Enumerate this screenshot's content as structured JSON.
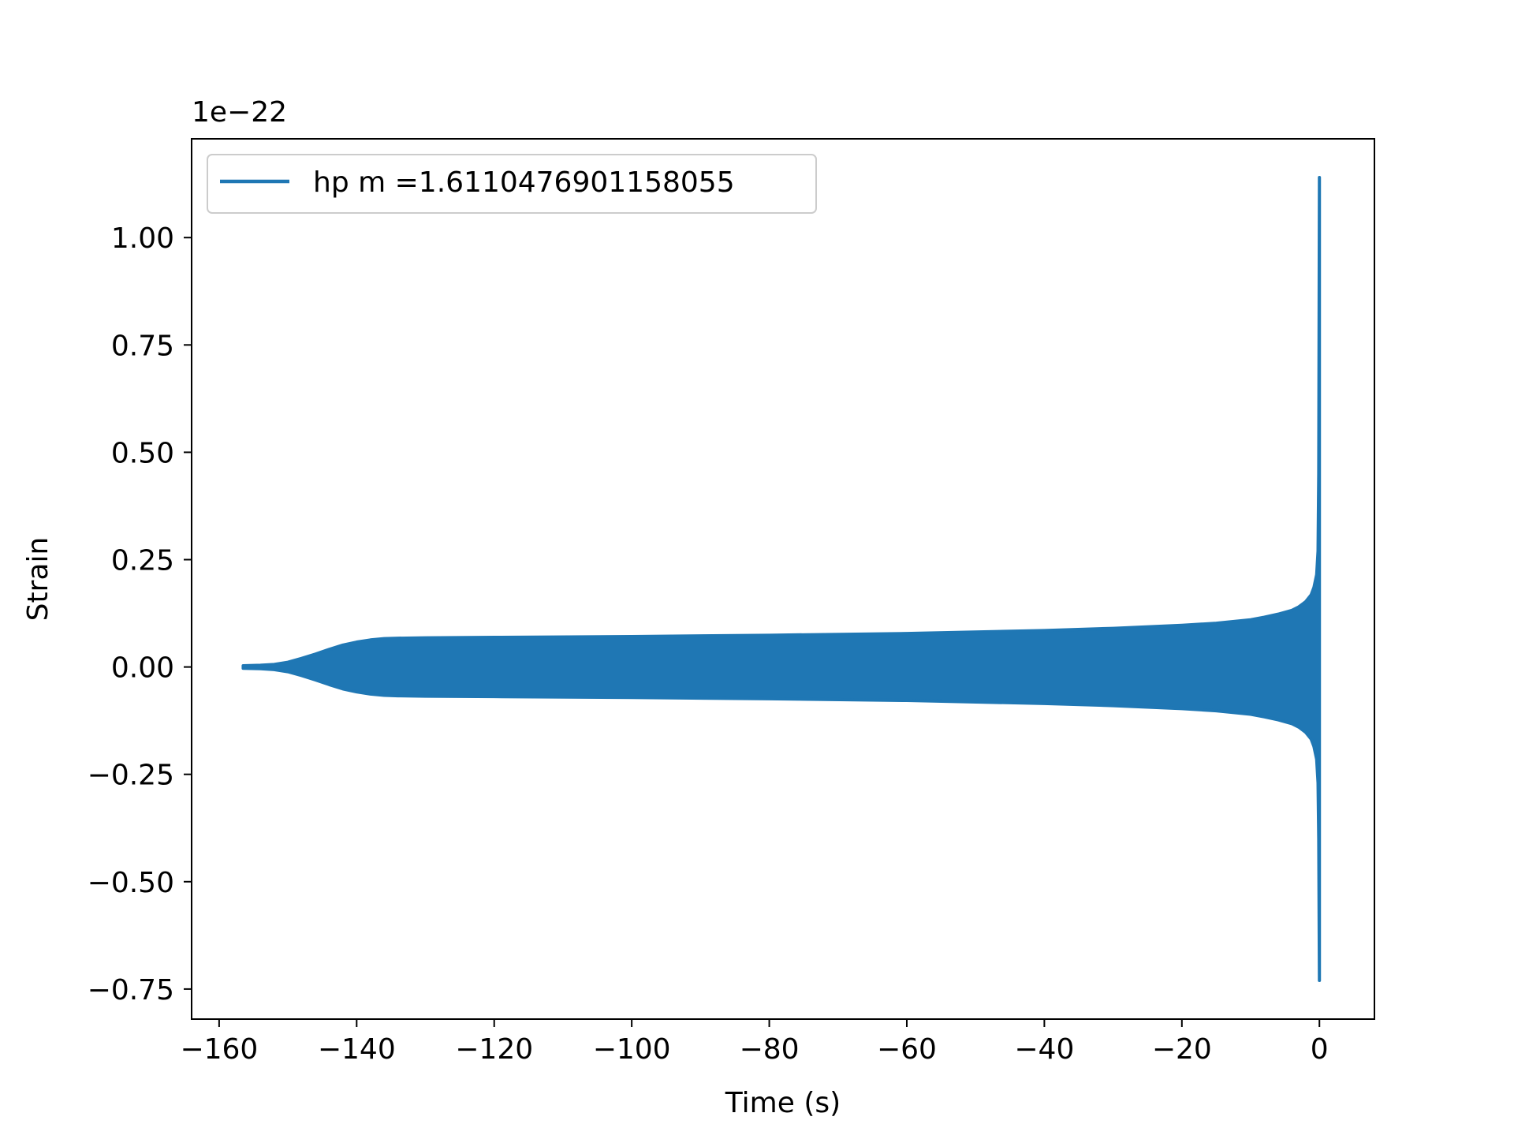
{
  "chart_data": {
    "type": "line",
    "title": "",
    "xlabel": "Time (s)",
    "ylabel": "Strain",
    "y_offset_label": "1e−22",
    "xlim": [
      -164,
      8
    ],
    "ylim": [
      -0.82,
      1.23
    ],
    "x_ticks": [
      -160,
      -140,
      -120,
      -100,
      -80,
      -60,
      -40,
      -20,
      0
    ],
    "x_tick_labels": [
      "−160",
      "−140",
      "−120",
      "−100",
      "−80",
      "−60",
      "−40",
      "−20",
      "0"
    ],
    "y_ticks": [
      -0.75,
      -0.5,
      -0.25,
      0.0,
      0.25,
      0.5,
      0.75,
      1.0
    ],
    "y_tick_labels": [
      "−0.75",
      "−0.50",
      "−0.25",
      "0.00",
      "0.25",
      "0.50",
      "0.75",
      "1.00"
    ],
    "grid": false,
    "legend": {
      "placement": "upper-left"
    },
    "series": [
      {
        "name": "hp m =1.6110476901158055",
        "color": "#1f77b4",
        "envelope_x": [
          -156.5,
          -154,
          -152,
          -150,
          -148,
          -146,
          -144,
          -142,
          -140,
          -138,
          -136,
          -134,
          -130,
          -120,
          -100,
          -80,
          -60,
          -40,
          -30,
          -20,
          -15,
          -10,
          -8,
          -6,
          -4,
          -3,
          -2,
          -1.2,
          -0.8,
          -0.4,
          -0.2,
          -0.1,
          0
        ],
        "envelope_upper": [
          0.003,
          0.004,
          0.006,
          0.011,
          0.02,
          0.03,
          0.041,
          0.051,
          0.058,
          0.063,
          0.066,
          0.067,
          0.068,
          0.069,
          0.071,
          0.074,
          0.078,
          0.085,
          0.09,
          0.097,
          0.102,
          0.11,
          0.116,
          0.123,
          0.132,
          0.14,
          0.152,
          0.168,
          0.185,
          0.215,
          0.27,
          0.45,
          1.14
        ],
        "envelope_lower": [
          -0.003,
          -0.004,
          -0.006,
          -0.011,
          -0.02,
          -0.03,
          -0.041,
          -0.051,
          -0.058,
          -0.063,
          -0.066,
          -0.067,
          -0.068,
          -0.069,
          -0.071,
          -0.074,
          -0.078,
          -0.085,
          -0.09,
          -0.097,
          -0.102,
          -0.11,
          -0.116,
          -0.123,
          -0.132,
          -0.14,
          -0.152,
          -0.168,
          -0.185,
          -0.215,
          -0.27,
          -0.4,
          -0.73
        ]
      }
    ]
  }
}
